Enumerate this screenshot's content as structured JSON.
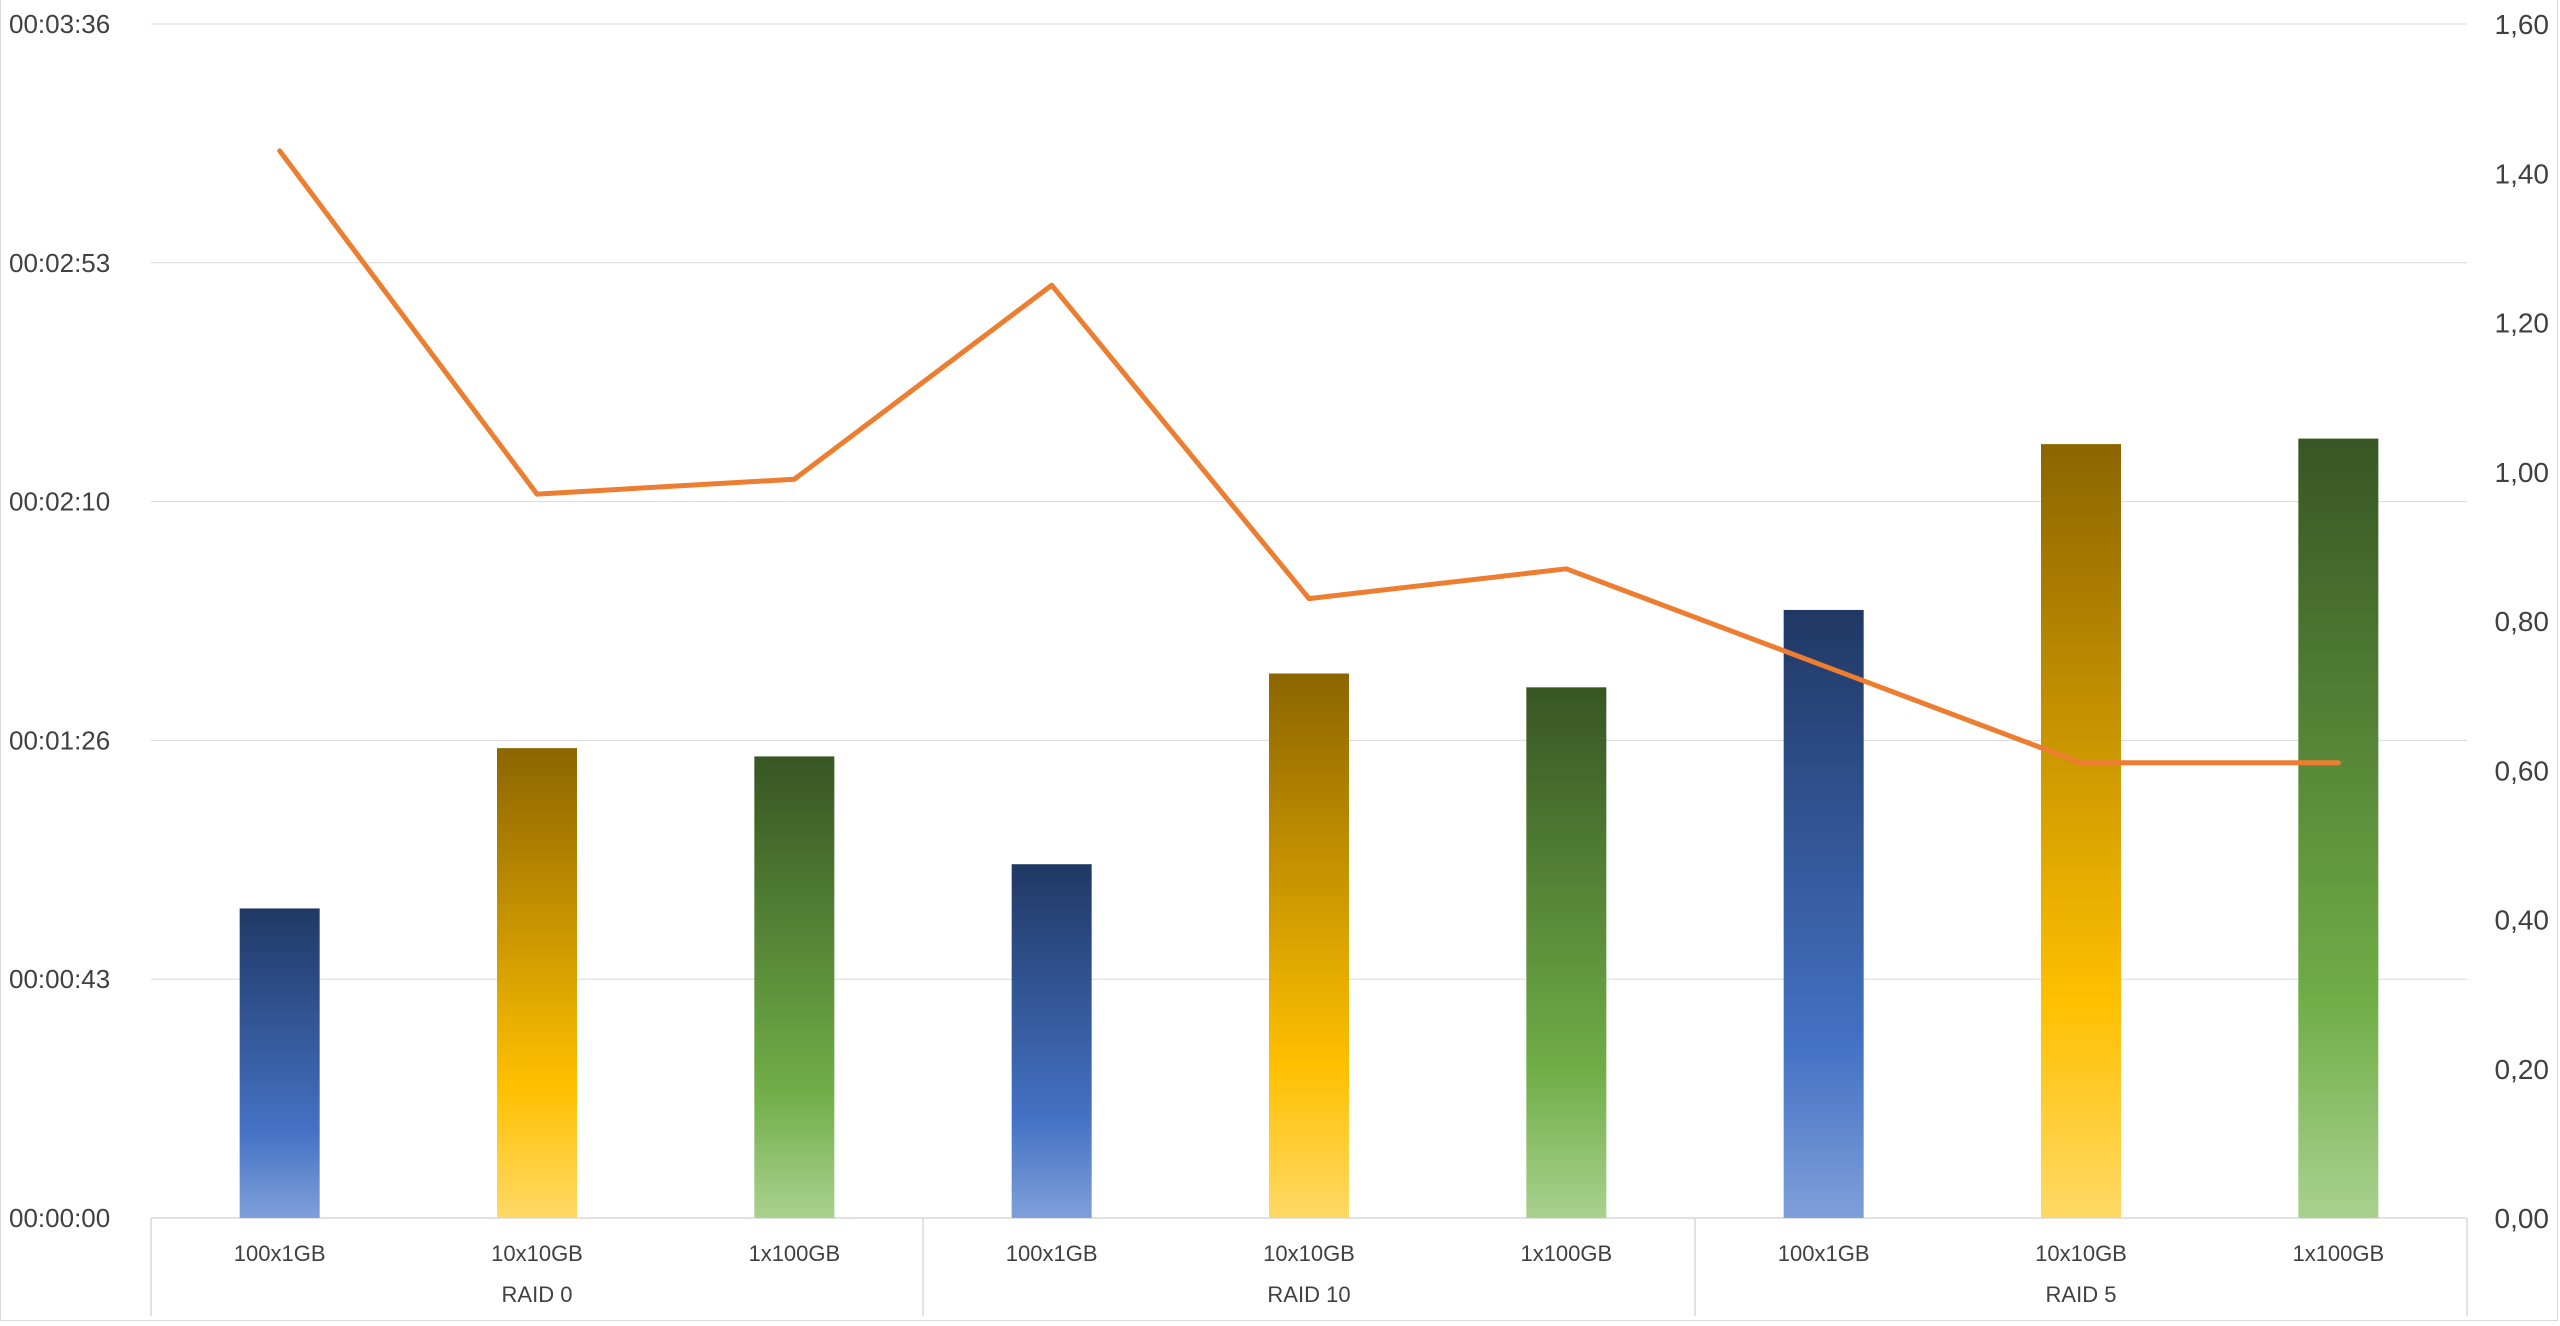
{
  "chart_data": {
    "type": "bar+line",
    "title": "",
    "categories": [
      {
        "group": "RAID 0",
        "items": [
          "100x1GB",
          "10x10GB",
          "1x100GB"
        ]
      },
      {
        "group": "RAID 10",
        "items": [
          "100x1GB",
          "10x10GB",
          "1x100GB"
        ]
      },
      {
        "group": "RAID 5",
        "items": [
          "100x1GB",
          "10x10GB",
          "1x100GB"
        ]
      }
    ],
    "bar_values_seconds": [
      56,
      85,
      83.5,
      64,
      98.5,
      96,
      110,
      140,
      141
    ],
    "bar_colors": [
      {
        "top": "#203864",
        "mid": "#4472c4",
        "bottom": "#7f9fd9"
      },
      {
        "top": "#8c6500",
        "mid": "#ffc000",
        "bottom": "#ffd966"
      },
      {
        "top": "#375623",
        "mid": "#70ad47",
        "bottom": "#a9d18e"
      }
    ],
    "line_values": [
      1.43,
      0.97,
      0.99,
      1.25,
      0.83,
      0.87,
      0.74,
      0.61,
      0.61
    ],
    "line_color": "#ed7d31",
    "y_left": {
      "ylim_seconds": [
        0,
        216
      ],
      "tick_labels": [
        "00:00:00",
        "00:00:43",
        "00:01:26",
        "00:02:10",
        "00:02:53",
        "00:03:36"
      ]
    },
    "y_right": {
      "ylim": [
        0,
        1.6
      ],
      "tick_labels": [
        "0,00",
        "0,20",
        "0,40",
        "0,60",
        "0,80",
        "1,00",
        "1,20",
        "1,40",
        "1,60"
      ]
    },
    "grid": true,
    "gridline_color": "#d9d9d9"
  }
}
